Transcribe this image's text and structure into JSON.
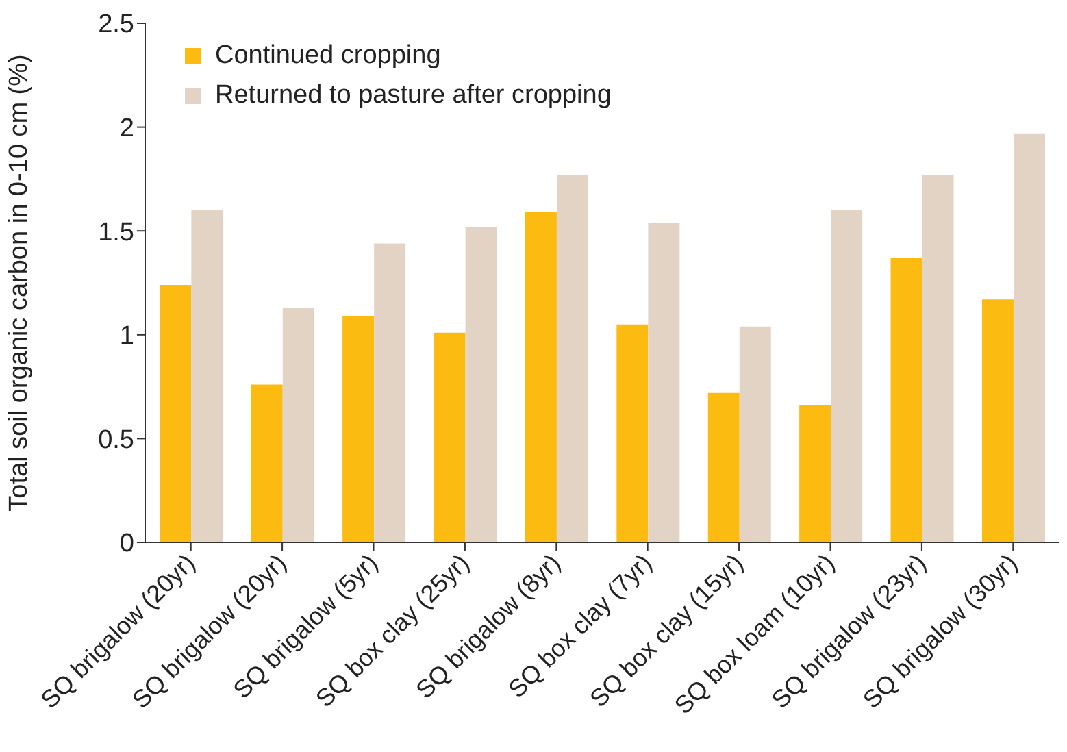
{
  "chart_data": {
    "type": "bar",
    "ylabel": "Total soil organic carbon in 0-10 cm (%)",
    "categories": [
      "SQ brigalow (20yr)",
      "SQ brigalow (20yr)",
      "SQ brigalow (5yr)",
      "SQ box clay (25yr)",
      "SQ brigalow (8yr)",
      "SQ box clay (7yr)",
      "SQ box clay (15yr)",
      "SQ box loam (10yr)",
      "SQ brigalow (23yr)",
      "SQ brigalow (30yr)"
    ],
    "series": [
      {
        "name": "Continued cropping",
        "color": "#fbbb10",
        "values": [
          1.24,
          0.76,
          1.09,
          1.01,
          1.59,
          1.05,
          0.72,
          0.66,
          1.37,
          1.17
        ]
      },
      {
        "name": "Returned to pasture after cropping",
        "color": "#e3d3c5",
        "values": [
          1.6,
          1.13,
          1.44,
          1.52,
          1.77,
          1.54,
          1.04,
          1.6,
          1.77,
          1.97
        ]
      }
    ],
    "ylim": [
      0,
      2.5
    ],
    "yticks": [
      0,
      0.5,
      1,
      1.5,
      2,
      2.5
    ],
    "grid": false,
    "legend": "top left"
  }
}
